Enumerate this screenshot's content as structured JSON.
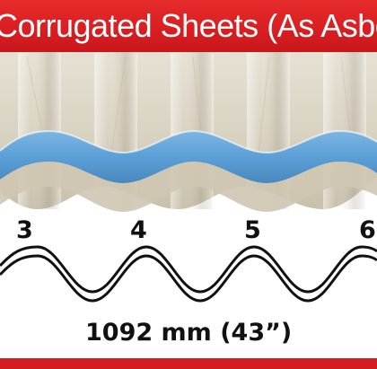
{
  "header": {
    "title": "Corrugated Sheets (As Asbe",
    "background": "#d91f22",
    "text_color": "#ffffff"
  },
  "sheet": {
    "edge_color": "#5b9fd6",
    "body_color": "#d8d2c2"
  },
  "profile": {
    "pitch_labels": [
      "3",
      "4",
      "5",
      "6"
    ],
    "dimension_label": "1092 mm (43”)"
  },
  "footer": {
    "color": "#d31d21"
  }
}
